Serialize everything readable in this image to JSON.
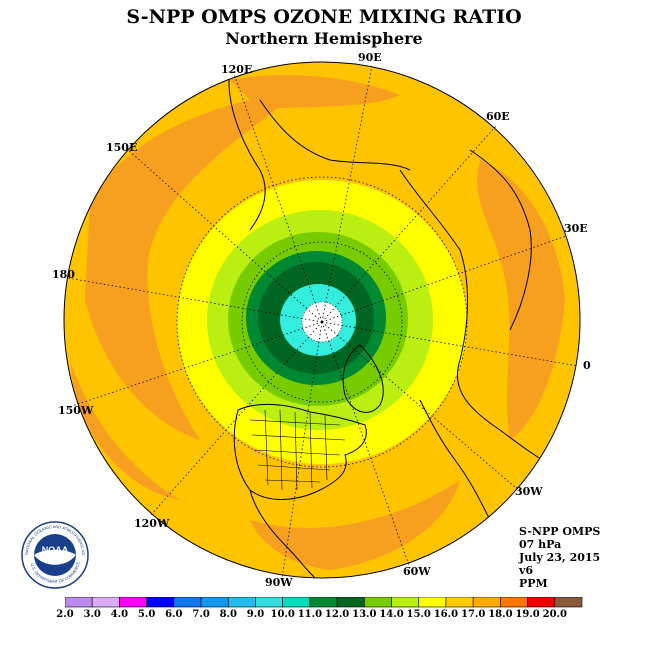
{
  "title": "S-NPP OMPS OZONE MIXING RATIO",
  "subtitle": "Northern Hemisphere",
  "longitude_labels": [
    "90E",
    "60E",
    "30E",
    "0",
    "30W",
    "60W",
    "90W",
    "120W",
    "150W",
    "180",
    "150E",
    "120E"
  ],
  "info": {
    "instrument": "S-NPP OMPS",
    "pressure": "07 hPa",
    "date": "July 23, 2015",
    "version": "v6",
    "units": "PPM"
  },
  "logo": {
    "text": "NOAA",
    "ring_top": "NATIONAL OCEANIC AND ATMOSPHERIC ADMINISTRATION",
    "ring_bottom": "U.S. DEPARTMENT OF COMMERCE"
  },
  "colorbar": {
    "ticks": [
      "2.0",
      "3.0",
      "4.0",
      "5.0",
      "6.0",
      "7.0",
      "8.0",
      "9.0",
      "10.0",
      "11.0",
      "12.0",
      "13.0",
      "14.0",
      "15.0",
      "16.0",
      "17.0",
      "18.0",
      "19.0",
      "20.0"
    ],
    "colors": [
      "#bb88ee",
      "#ddaaf5",
      "#ff00ff",
      "#0000ff",
      "#1177ee",
      "#1199ee",
      "#22bbee",
      "#33dddd",
      "#00ddbb",
      "#008833",
      "#006622",
      "#77cc00",
      "#bbee11",
      "#ffff00",
      "#ffcc00",
      "#ffaa00",
      "#ff7700",
      "#ee0000",
      "#8b5a3c"
    ]
  },
  "ozone_levels_ppm": [
    16.5,
    16.0,
    15.0,
    14.0,
    13.0,
    12.0,
    11.0,
    10.0
  ],
  "pole_value": "no data",
  "colors": {
    "ocean_orange": "#f7a020",
    "level_16": "#ffc400",
    "level_15": "#ffff00",
    "level_14": "#bbee11",
    "level_13": "#77cc00",
    "level_12": "#008833",
    "level_11": "#006622",
    "level_10": "#00ddbb",
    "level_9": "#33eedd"
  }
}
